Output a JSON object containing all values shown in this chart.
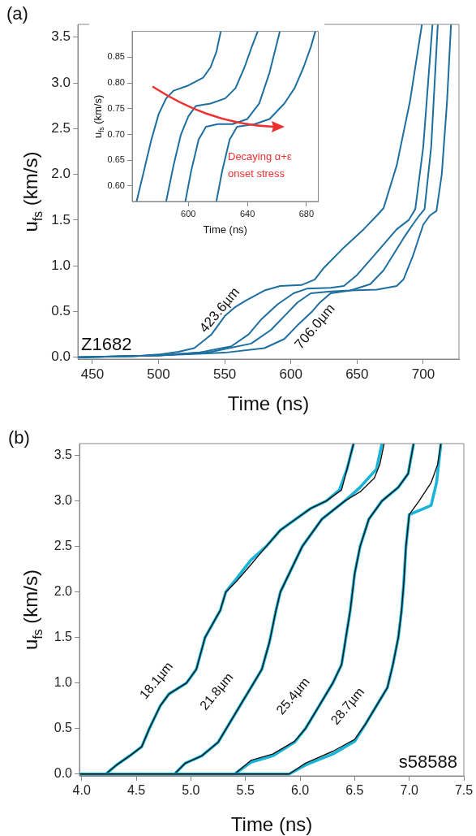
{
  "chart_data": [
    {
      "type": "line",
      "xlabel": "Time (ns)",
      "ylabel": "u$_{fs}$ (km/s)",
      "xlim": [
        439,
        727
      ],
      "ylim": [
        -0.02,
        3.64
      ],
      "xticks": [
        450,
        500,
        550,
        600,
        650,
        700
      ],
      "yticks": [
        {
          "value": 0,
          "label": "0.0"
        },
        0.5,
        {
          "value": 1,
          "label": "1.0"
        },
        1.5,
        {
          "value": 2,
          "label": "2.0"
        },
        2.5,
        {
          "value": 3,
          "label": "3.0"
        },
        3.5
      ],
      "legend": false,
      "marker": "none",
      "annotations": [
        "(a)",
        "Z1682"
      ],
      "series": [
        {
          "name": "423.6µm",
          "color": "#1d6fa0",
          "x": [
            439,
            480,
            500,
            515,
            527,
            540,
            550,
            558,
            566,
            580,
            592,
            608,
            618,
            625,
            640,
            655,
            665,
            670,
            680,
            690,
            699
          ],
          "values": [
            0,
            0.01,
            0.03,
            0.06,
            0.1,
            0.25,
            0.45,
            0.55,
            0.62,
            0.73,
            0.78,
            0.79,
            0.85,
            0.98,
            1.2,
            1.4,
            1.55,
            1.63,
            2.1,
            2.8,
            3.64
          ]
        },
        {
          "color": "#1d6fa0",
          "x": [
            439,
            500,
            530,
            555,
            568,
            578,
            590,
            602,
            612,
            630,
            640,
            650,
            665,
            680,
            689,
            694,
            700,
            707
          ],
          "values": [
            0,
            0.02,
            0.05,
            0.12,
            0.25,
            0.42,
            0.58,
            0.7,
            0.75,
            0.76,
            0.78,
            0.9,
            1.15,
            1.4,
            1.5,
            1.62,
            2.3,
            3.64
          ]
        },
        {
          "color": "#1d6fa0",
          "x": [
            439,
            500,
            540,
            570,
            585,
            595,
            605,
            615,
            630,
            645,
            660,
            670,
            685,
            692,
            697,
            701,
            706,
            711
          ],
          "values": [
            0,
            0.02,
            0.06,
            0.15,
            0.3,
            0.45,
            0.6,
            0.7,
            0.72,
            0.73,
            0.8,
            0.95,
            1.3,
            1.45,
            1.55,
            1.62,
            2.3,
            3.64
          ]
        },
        {
          "name": "706.0µm",
          "color": "#1d6fa0",
          "x": [
            439,
            500,
            550,
            580,
            595,
            605,
            616,
            622,
            630,
            645,
            665,
            680,
            685,
            692,
            700,
            705,
            710,
            714,
            718,
            721
          ],
          "values": [
            0,
            0.02,
            0.05,
            0.1,
            0.2,
            0.35,
            0.5,
            0.6,
            0.7,
            0.73,
            0.74,
            0.78,
            0.85,
            1.1,
            1.45,
            1.55,
            1.6,
            2.0,
            2.8,
            3.64
          ]
        }
      ]
    },
    {
      "type": "line",
      "xlabel": "Time (ns)",
      "ylabel": "u$_{fs}$ (km/s)",
      "xlim": [
        562,
        688
      ],
      "ylim": [
        0.57,
        0.9
      ],
      "xticks": [
        600,
        640,
        680
      ],
      "yticks": [
        {
          "value": 0.6,
          "label": "0.60"
        },
        0.65,
        {
          "value": 0.7,
          "label": "0.70"
        },
        0.75,
        {
          "value": 0.8,
          "label": "0.80"
        },
        0.85
      ],
      "legend": false,
      "marker": "none",
      "annotations": [
        "Decaying α+ε onset stress"
      ],
      "series": [
        {
          "color": "#1d6fa0",
          "x": [
            565,
            570,
            575,
            580,
            585,
            590,
            600,
            610,
            615,
            619,
            622
          ],
          "values": [
            0.57,
            0.63,
            0.69,
            0.74,
            0.77,
            0.785,
            0.795,
            0.81,
            0.83,
            0.86,
            0.9
          ]
        },
        {
          "color": "#1d6fa0",
          "x": [
            585,
            590,
            595,
            600,
            605,
            615,
            625,
            632,
            638,
            643,
            647
          ],
          "values": [
            0.57,
            0.64,
            0.7,
            0.735,
            0.755,
            0.76,
            0.77,
            0.79,
            0.83,
            0.87,
            0.9
          ]
        },
        {
          "color": "#1d6fa0",
          "x": [
            598,
            602,
            607,
            612,
            620,
            630,
            640,
            648,
            655,
            662
          ],
          "values": [
            0.57,
            0.63,
            0.69,
            0.715,
            0.72,
            0.72,
            0.73,
            0.76,
            0.82,
            0.9
          ]
        },
        {
          "color": "#1d6fa0",
          "x": [
            619,
            623,
            628,
            633,
            645,
            655,
            665,
            672,
            678,
            683,
            686
          ],
          "values": [
            0.57,
            0.63,
            0.69,
            0.715,
            0.72,
            0.73,
            0.76,
            0.79,
            0.83,
            0.87,
            0.9
          ]
        }
      ]
    },
    {
      "type": "line",
      "xlabel": "Time (ns)",
      "ylabel": "u$_{fs}$ (km/s)",
      "xlim": [
        3.98,
        7.5
      ],
      "ylim": [
        -0.02,
        3.63
      ],
      "xticks": [
        {
          "value": 4,
          "label": "4.0"
        },
        4.5,
        {
          "value": 5,
          "label": "5.0"
        },
        5.5,
        {
          "value": 6,
          "label": "6.0"
        },
        6.5,
        {
          "value": 7,
          "label": "7.0"
        },
        7.5
      ],
      "yticks": [
        {
          "value": 0,
          "label": "0.0"
        },
        0.5,
        {
          "value": 1,
          "label": "1.0"
        },
        1.5,
        {
          "value": 2,
          "label": "2.0"
        },
        2.5,
        {
          "value": 3,
          "label": "3.0"
        },
        3.5
      ],
      "legend": false,
      "marker": "none",
      "annotations": [
        "(b)",
        "s58588"
      ],
      "series": [
        {
          "color": "#19b4d8",
          "x": [
            3.98,
            4.22,
            4.32,
            4.44,
            4.55,
            4.62,
            4.72,
            4.8,
            4.96,
            5.05,
            5.13,
            5.27,
            5.32,
            5.42,
            5.55,
            5.69,
            5.82,
            5.96,
            6.1,
            6.24,
            6.36,
            6.43,
            6.49
          ],
          "values": [
            0,
            0,
            0.1,
            0.2,
            0.3,
            0.5,
            0.75,
            0.88,
            1.0,
            1.15,
            1.5,
            1.8,
            2.0,
            2.15,
            2.35,
            2.5,
            2.68,
            2.8,
            2.92,
            3.0,
            3.12,
            3.35,
            3.63
          ]
        },
        {
          "name": "18.1µm",
          "color": "#111111",
          "x": [
            3.98,
            4.22,
            4.32,
            4.44,
            4.55,
            4.62,
            4.72,
            4.8,
            4.96,
            5.05,
            5.13,
            5.27,
            5.32,
            5.42,
            5.55,
            5.69,
            5.82,
            5.96,
            6.1,
            6.24,
            6.38,
            6.43,
            6.49
          ],
          "values": [
            0,
            0,
            0.1,
            0.2,
            0.3,
            0.5,
            0.75,
            0.88,
            1.0,
            1.15,
            1.5,
            1.8,
            2.0,
            2.12,
            2.3,
            2.5,
            2.68,
            2.8,
            2.92,
            3.0,
            3.12,
            3.35,
            3.63
          ]
        },
        {
          "color": "#19b4d8",
          "x": [
            3.98,
            4.85,
            4.95,
            5.1,
            5.25,
            5.35,
            5.45,
            5.55,
            5.65,
            5.72,
            5.78,
            5.82,
            6.02,
            6.2,
            6.41,
            6.55,
            6.7,
            6.75
          ],
          "values": [
            0,
            0,
            0.12,
            0.2,
            0.35,
            0.55,
            0.75,
            0.95,
            1.15,
            1.45,
            1.8,
            2.0,
            2.5,
            2.8,
            3.0,
            3.15,
            3.35,
            3.63
          ]
        },
        {
          "name": "21.8µm",
          "color": "#111111",
          "x": [
            3.98,
            4.85,
            4.95,
            5.1,
            5.25,
            5.35,
            5.45,
            5.55,
            5.65,
            5.72,
            5.78,
            5.82,
            6.02,
            6.2,
            6.41,
            6.55,
            6.68,
            6.73,
            6.77
          ],
          "values": [
            0,
            0,
            0.12,
            0.2,
            0.35,
            0.55,
            0.75,
            0.95,
            1.15,
            1.45,
            1.8,
            2.0,
            2.5,
            2.8,
            3.0,
            3.1,
            3.25,
            3.4,
            3.63
          ]
        },
        {
          "color": "#19b4d8",
          "x": [
            3.98,
            5.4,
            5.55,
            5.75,
            5.95,
            6.05,
            6.15,
            6.3,
            6.38,
            6.42,
            6.46,
            6.5,
            6.55,
            6.63,
            6.75,
            6.9,
            6.99,
            7.04
          ],
          "values": [
            0,
            0,
            0.13,
            0.2,
            0.35,
            0.5,
            0.7,
            1.0,
            1.2,
            1.5,
            1.8,
            2.2,
            2.5,
            2.8,
            3.0,
            3.15,
            3.3,
            3.63
          ]
        },
        {
          "name": "25.4µm",
          "color": "#111111",
          "x": [
            3.98,
            5.4,
            5.55,
            5.75,
            5.95,
            6.05,
            6.15,
            6.3,
            6.38,
            6.42,
            6.46,
            6.5,
            6.55,
            6.63,
            6.75,
            6.9,
            6.99,
            7.04
          ],
          "values": [
            0,
            0,
            0.15,
            0.22,
            0.36,
            0.5,
            0.7,
            1.0,
            1.2,
            1.5,
            1.8,
            2.2,
            2.5,
            2.8,
            3.0,
            3.15,
            3.3,
            3.63
          ]
        },
        {
          "color": "#19b4d8",
          "x": [
            3.98,
            5.9,
            6.05,
            6.3,
            6.5,
            6.6,
            6.7,
            6.8,
            6.85,
            6.9,
            6.93,
            6.95,
            6.97,
            7.0,
            7.1,
            7.2,
            7.25,
            7.29
          ],
          "values": [
            0,
            0,
            0.1,
            0.22,
            0.36,
            0.55,
            0.75,
            0.95,
            1.2,
            1.5,
            1.8,
            2.1,
            2.5,
            2.85,
            2.9,
            2.95,
            3.2,
            3.63
          ]
        },
        {
          "name": "28.7µm",
          "color": "#111111",
          "x": [
            3.98,
            5.9,
            6.05,
            6.3,
            6.5,
            6.6,
            6.7,
            6.8,
            6.85,
            6.9,
            6.93,
            6.95,
            6.97,
            7.0,
            7.09,
            7.2,
            7.26,
            7.29
          ],
          "values": [
            0,
            0,
            0.12,
            0.25,
            0.38,
            0.55,
            0.75,
            0.95,
            1.2,
            1.5,
            1.8,
            2.1,
            2.5,
            2.85,
            3.0,
            3.2,
            3.4,
            3.63
          ]
        }
      ]
    }
  ]
}
